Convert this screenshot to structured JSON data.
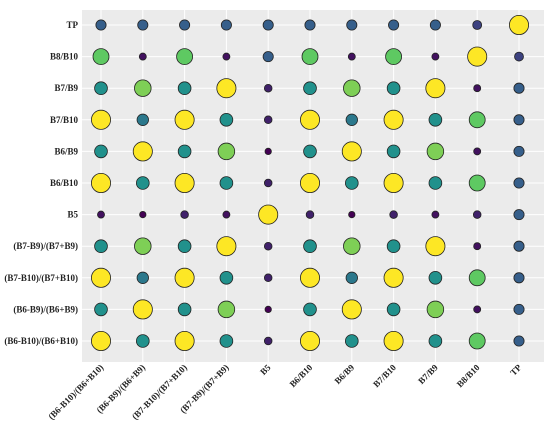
{
  "chart_data": {
    "type": "scatter",
    "subtype": "bubble-matrix",
    "title": "",
    "xlabel": "",
    "ylabel": "",
    "grid": true,
    "legend": "none",
    "panel_background": "#ebebeb",
    "x_categories": [
      "(B6-B10)/(B6+B10)",
      "(B6-B9)/(B6+B9)",
      "(B7-B10)/(B7+B10)",
      "(B7-B9)/(B7+B9)",
      "B5",
      "B6/B10",
      "B6/B9",
      "B7/B10",
      "B7/B9",
      "B8/B10",
      "TP"
    ],
    "y_categories": [
      "TP",
      "B8/B10",
      "B7/B9",
      "B7/B10",
      "B6/B9",
      "B6/B10",
      "B5",
      "(B7-B9)/(B7+B9)",
      "(B7-B10)/(B7+B10)",
      "(B6-B9)/(B6+B9)",
      "(B6-B10)/(B6+B10)"
    ],
    "color_scale": {
      "min": "#440154",
      "low": "#3b528b",
      "mid": "#21918c",
      "high": "#5ec962",
      "max": "#fde725"
    },
    "value_range": [
      0,
      1
    ],
    "values": [
      [
        0.3,
        0.3,
        0.3,
        0.3,
        0.3,
        0.3,
        0.3,
        0.3,
        0.3,
        0.2,
        1.0
      ],
      [
        0.75,
        0.05,
        0.75,
        0.05,
        0.3,
        0.75,
        0.05,
        0.75,
        0.05,
        1.0,
        0.2
      ],
      [
        0.5,
        0.8,
        0.5,
        1.0,
        0.1,
        0.5,
        0.8,
        0.5,
        1.0,
        0.05,
        0.3
      ],
      [
        1.0,
        0.4,
        1.0,
        0.5,
        0.1,
        1.0,
        0.4,
        1.0,
        0.5,
        0.75,
        0.3
      ],
      [
        0.5,
        1.0,
        0.5,
        0.8,
        0.0,
        0.5,
        1.0,
        0.5,
        0.8,
        0.05,
        0.3
      ],
      [
        1.0,
        0.5,
        1.0,
        0.5,
        0.1,
        1.0,
        0.5,
        1.0,
        0.5,
        0.75,
        0.3
      ],
      [
        0.05,
        0.0,
        0.1,
        0.05,
        1.0,
        0.1,
        0.0,
        0.1,
        0.05,
        0.1,
        0.3
      ],
      [
        0.5,
        0.8,
        0.5,
        1.0,
        0.1,
        0.5,
        0.8,
        0.5,
        1.0,
        0.05,
        0.3
      ],
      [
        1.0,
        0.4,
        1.0,
        0.5,
        0.1,
        1.0,
        0.4,
        1.0,
        0.5,
        0.75,
        0.3
      ],
      [
        0.5,
        1.0,
        0.5,
        0.8,
        0.0,
        0.5,
        1.0,
        0.5,
        0.8,
        0.05,
        0.3
      ],
      [
        1.0,
        0.5,
        1.0,
        0.5,
        0.1,
        1.0,
        0.5,
        1.0,
        0.5,
        0.75,
        0.3
      ]
    ]
  }
}
